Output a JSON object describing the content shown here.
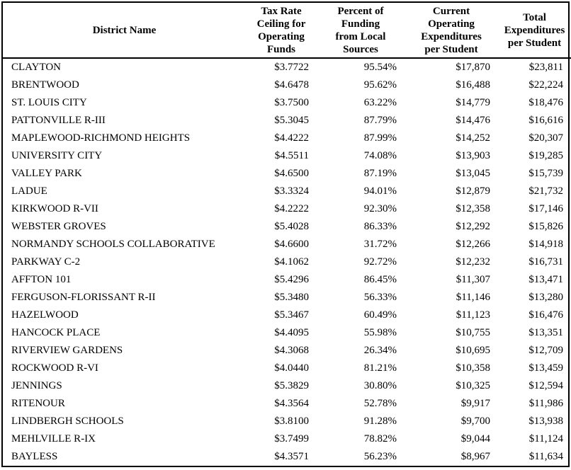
{
  "colors": {
    "background": "#ffffff",
    "text": "#000000",
    "border": "#000000"
  },
  "table": {
    "columns": [
      {
        "key": "district",
        "label": "District Name"
      },
      {
        "key": "tax_rate_ceiling",
        "label": "Tax Rate\nCeiling for\nOperating\nFunds"
      },
      {
        "key": "pct_local_funding",
        "label": "Percent of\nFunding\nfrom Local\nSources"
      },
      {
        "key": "current_operating_exp_per_student",
        "label": "Current\nOperating\nExpenditures\nper Student"
      },
      {
        "key": "total_exp_per_student",
        "label": "Total\nExpenditures\nper Student"
      }
    ],
    "rows": [
      {
        "district": "CLAYTON",
        "tax_rate_ceiling": "$3.7722",
        "pct_local_funding": "95.54%",
        "current_operating_exp_per_student": "$17,870",
        "total_exp_per_student": "$23,811"
      },
      {
        "district": "BRENTWOOD",
        "tax_rate_ceiling": "$4.6478",
        "pct_local_funding": "95.62%",
        "current_operating_exp_per_student": "$16,488",
        "total_exp_per_student": "$22,224"
      },
      {
        "district": "ST. LOUIS CITY",
        "tax_rate_ceiling": "$3.7500",
        "pct_local_funding": "63.22%",
        "current_operating_exp_per_student": "$14,779",
        "total_exp_per_student": "$18,476"
      },
      {
        "district": "PATTONVILLE R-III",
        "tax_rate_ceiling": "$5.3045",
        "pct_local_funding": "87.79%",
        "current_operating_exp_per_student": "$14,476",
        "total_exp_per_student": "$16,616"
      },
      {
        "district": "MAPLEWOOD-RICHMOND HEIGHTS",
        "tax_rate_ceiling": "$4.4222",
        "pct_local_funding": "87.99%",
        "current_operating_exp_per_student": "$14,252",
        "total_exp_per_student": "$20,307"
      },
      {
        "district": "UNIVERSITY CITY",
        "tax_rate_ceiling": "$4.5511",
        "pct_local_funding": "74.08%",
        "current_operating_exp_per_student": "$13,903",
        "total_exp_per_student": "$19,285"
      },
      {
        "district": "VALLEY PARK",
        "tax_rate_ceiling": "$4.6500",
        "pct_local_funding": "87.19%",
        "current_operating_exp_per_student": "$13,045",
        "total_exp_per_student": "$15,739"
      },
      {
        "district": "LADUE",
        "tax_rate_ceiling": "$3.3324",
        "pct_local_funding": "94.01%",
        "current_operating_exp_per_student": "$12,879",
        "total_exp_per_student": "$21,732"
      },
      {
        "district": "KIRKWOOD R-VII",
        "tax_rate_ceiling": "$4.2222",
        "pct_local_funding": "92.30%",
        "current_operating_exp_per_student": "$12,358",
        "total_exp_per_student": "$17,146"
      },
      {
        "district": "WEBSTER GROVES",
        "tax_rate_ceiling": "$5.4028",
        "pct_local_funding": "86.33%",
        "current_operating_exp_per_student": "$12,292",
        "total_exp_per_student": "$15,826"
      },
      {
        "district": "NORMANDY SCHOOLS COLLABORATIVE",
        "tax_rate_ceiling": "$4.6600",
        "pct_local_funding": "31.72%",
        "current_operating_exp_per_student": "$12,266",
        "total_exp_per_student": "$14,918"
      },
      {
        "district": "PARKWAY C-2",
        "tax_rate_ceiling": "$4.1062",
        "pct_local_funding": "92.72%",
        "current_operating_exp_per_student": "$12,232",
        "total_exp_per_student": "$16,731"
      },
      {
        "district": "AFFTON 101",
        "tax_rate_ceiling": "$5.4296",
        "pct_local_funding": "86.45%",
        "current_operating_exp_per_student": "$11,307",
        "total_exp_per_student": "$13,471"
      },
      {
        "district": "FERGUSON-FLORISSANT R-II",
        "tax_rate_ceiling": "$5.3480",
        "pct_local_funding": "56.33%",
        "current_operating_exp_per_student": "$11,146",
        "total_exp_per_student": "$13,280"
      },
      {
        "district": "HAZELWOOD",
        "tax_rate_ceiling": "$5.3467",
        "pct_local_funding": "60.49%",
        "current_operating_exp_per_student": "$11,123",
        "total_exp_per_student": "$16,476"
      },
      {
        "district": "HANCOCK PLACE",
        "tax_rate_ceiling": "$4.4095",
        "pct_local_funding": "55.98%",
        "current_operating_exp_per_student": "$10,755",
        "total_exp_per_student": "$13,351"
      },
      {
        "district": "RIVERVIEW GARDENS",
        "tax_rate_ceiling": "$4.3068",
        "pct_local_funding": "26.34%",
        "current_operating_exp_per_student": "$10,695",
        "total_exp_per_student": "$12,709"
      },
      {
        "district": "ROCKWOOD R-VI",
        "tax_rate_ceiling": "$4.0440",
        "pct_local_funding": "81.21%",
        "current_operating_exp_per_student": "$10,358",
        "total_exp_per_student": "$13,459"
      },
      {
        "district": "JENNINGS",
        "tax_rate_ceiling": "$5.3829",
        "pct_local_funding": "30.80%",
        "current_operating_exp_per_student": "$10,325",
        "total_exp_per_student": "$12,594"
      },
      {
        "district": "RITENOUR",
        "tax_rate_ceiling": "$4.3564",
        "pct_local_funding": "52.78%",
        "current_operating_exp_per_student": "$9,917",
        "total_exp_per_student": "$11,986"
      },
      {
        "district": "LINDBERGH SCHOOLS",
        "tax_rate_ceiling": "$3.8100",
        "pct_local_funding": "91.28%",
        "current_operating_exp_per_student": "$9,700",
        "total_exp_per_student": "$13,938"
      },
      {
        "district": "MEHLVILLE R-IX",
        "tax_rate_ceiling": "$3.7499",
        "pct_local_funding": "78.82%",
        "current_operating_exp_per_student": "$9,044",
        "total_exp_per_student": "$11,124"
      },
      {
        "district": "BAYLESS",
        "tax_rate_ceiling": "$4.3571",
        "pct_local_funding": "56.23%",
        "current_operating_exp_per_student": "$8,967",
        "total_exp_per_student": "$11,634"
      }
    ]
  }
}
